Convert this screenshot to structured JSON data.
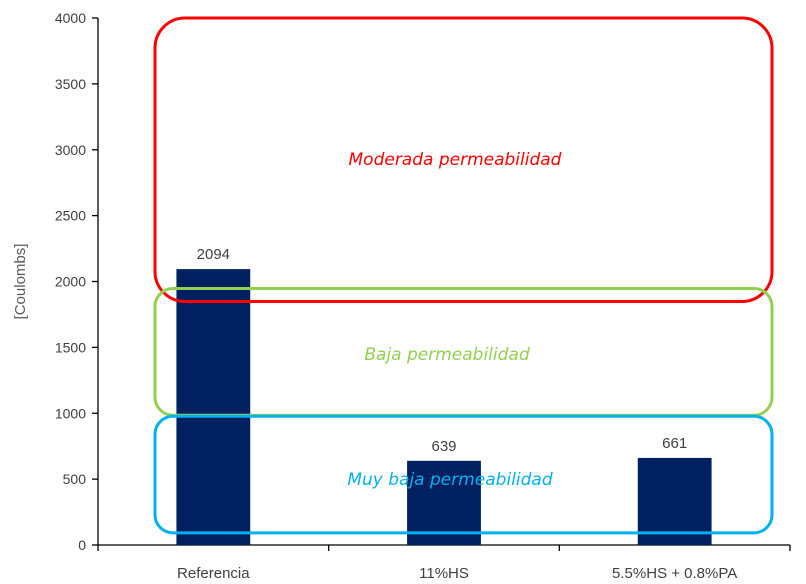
{
  "chart_data": {
    "type": "bar",
    "categories": [
      "Referencia",
      "11%HS",
      "5.5%HS + 0.8%PA"
    ],
    "values": [
      2094,
      639,
      661
    ],
    "data_labels": [
      "2094",
      "639",
      "661"
    ],
    "ylabel": "[Coulombs]",
    "xlabel": "",
    "ylim": [
      0,
      4000
    ],
    "yticks": [
      0,
      500,
      1000,
      1500,
      2000,
      2500,
      3000,
      3500,
      4000
    ],
    "grid": false,
    "bar_color": "#002060",
    "zones": [
      {
        "label": "Moderada permeabilidad",
        "color": "#ff0000",
        "range": [
          2000,
          4000
        ]
      },
      {
        "label": "Baja permeabilidad",
        "color": "#92d050",
        "range": [
          1000,
          2000
        ]
      },
      {
        "label": "Muy baja permeabilidad",
        "color": "#00b0f0",
        "range": [
          100,
          1000
        ]
      }
    ]
  }
}
